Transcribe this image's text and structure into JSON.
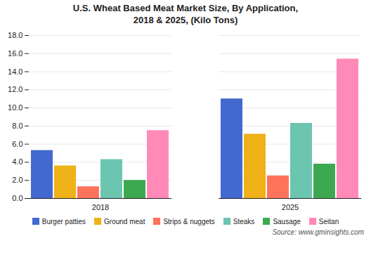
{
  "chart_data": {
    "type": "bar",
    "title": "U.S. Wheat Based Meat Market Size, By Application,\n2018 & 2025, (Kilo Tons)",
    "categories": [
      "2018",
      "2025"
    ],
    "series": [
      {
        "name": "Burger patties",
        "values": [
          5.3,
          11.0
        ]
      },
      {
        "name": "Ground meat",
        "values": [
          3.6,
          7.1
        ]
      },
      {
        "name": "Strips & nuggets",
        "values": [
          1.3,
          2.5
        ]
      },
      {
        "name": "Steaks",
        "values": [
          4.3,
          8.3
        ]
      },
      {
        "name": "Sausage",
        "values": [
          2.0,
          3.8
        ]
      },
      {
        "name": "Seitan",
        "values": [
          7.5,
          15.4
        ]
      }
    ],
    "ylim": [
      0,
      18.0
    ],
    "yticks": [
      {
        "value": 0,
        "label": "0.0"
      },
      {
        "value": 2,
        "label": "2.0"
      },
      {
        "value": 4,
        "label": "4.0"
      },
      {
        "value": 6,
        "label": "6.0"
      },
      {
        "value": 8,
        "label": "8.0"
      },
      {
        "value": 10,
        "label": "10.0"
      },
      {
        "value": 12,
        "label": "12.0"
      },
      {
        "value": 14,
        "label": "14.0"
      },
      {
        "value": 16,
        "label": "16.0"
      },
      {
        "value": 18,
        "label": "18.0"
      }
    ],
    "grid": true,
    "legend": "bottom",
    "source": "Source: www.gminsights.com"
  }
}
